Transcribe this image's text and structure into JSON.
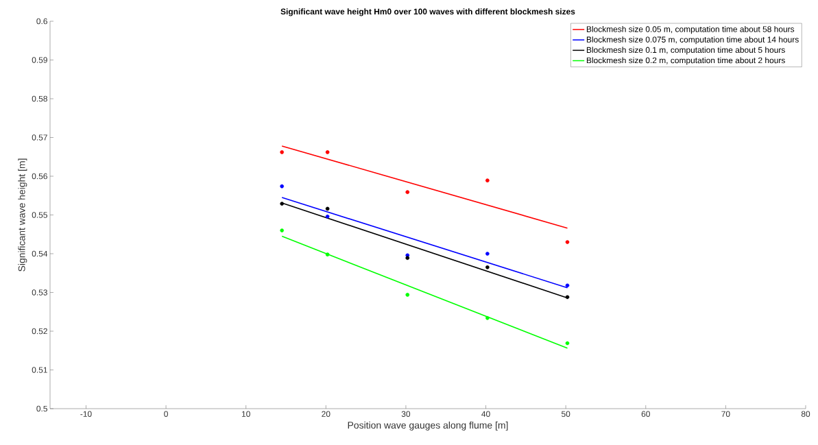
{
  "chart_data": {
    "type": "scatter",
    "title": "Significant wave height Hm0 over 100 waves with different blockmesh sizes",
    "xlabel": "Position wave gauges along flume [m]",
    "ylabel": "Significant wave height [m]",
    "xlim": [
      -14.5,
      80
    ],
    "ylim": [
      0.5,
      0.6
    ],
    "xticks": [
      -10,
      0,
      10,
      20,
      30,
      40,
      50,
      60,
      70,
      80
    ],
    "yticks": [
      0.5,
      0.51,
      0.52,
      0.53,
      0.54,
      0.55,
      0.56,
      0.57,
      0.58,
      0.59,
      0.6
    ],
    "grid": false,
    "legend": "top right",
    "series": [
      {
        "type": "line",
        "name": "Blockmesh size 0.05 m, computation time about 58 hours",
        "color": "#ff0000",
        "marker": "none",
        "x": [
          14.5,
          50.2
        ],
        "values": [
          0.5678,
          0.5466
        ]
      },
      {
        "type": "line",
        "name": "Blockmesh size 0.075 m, computation time about 14 hours",
        "color": "#0000ff",
        "marker": "none",
        "x": [
          14.5,
          50.2
        ],
        "values": [
          0.5545,
          0.5312
        ]
      },
      {
        "type": "line",
        "name": "Blockmesh size 0.1 m, computation time about 5 hours",
        "color": "#000000",
        "marker": "none",
        "x": [
          14.5,
          50.2
        ],
        "values": [
          0.5531,
          0.5286
        ]
      },
      {
        "type": "line",
        "name": "Blockmesh size 0.2 m, computation time about 2 hours",
        "color": "#00ff00",
        "marker": "none",
        "x": [
          14.5,
          50.2
        ],
        "values": [
          0.5445,
          0.5156
        ]
      },
      {
        "color": "#ff0000",
        "marker": "circle",
        "x": [
          14.5,
          20.2,
          30.2,
          40.2,
          50.2
        ],
        "values": [
          0.5662,
          0.5662,
          0.5559,
          0.5589,
          0.543
        ]
      },
      {
        "color": "#0000ff",
        "marker": "circle",
        "x": [
          14.5,
          20.2,
          30.2,
          40.2,
          50.2
        ],
        "values": [
          0.5574,
          0.5496,
          0.5396,
          0.54,
          0.5318
        ]
      },
      {
        "color": "#000000",
        "marker": "circle",
        "x": [
          14.5,
          20.2,
          30.2,
          40.2,
          50.2
        ],
        "values": [
          0.5529,
          0.5516,
          0.5389,
          0.5365,
          0.5288
        ]
      },
      {
        "color": "#00ff00",
        "marker": "circle",
        "x": [
          14.5,
          20.2,
          30.2,
          40.2,
          50.2
        ],
        "values": [
          0.546,
          0.5398,
          0.5294,
          0.5234,
          0.5169
        ]
      }
    ]
  }
}
